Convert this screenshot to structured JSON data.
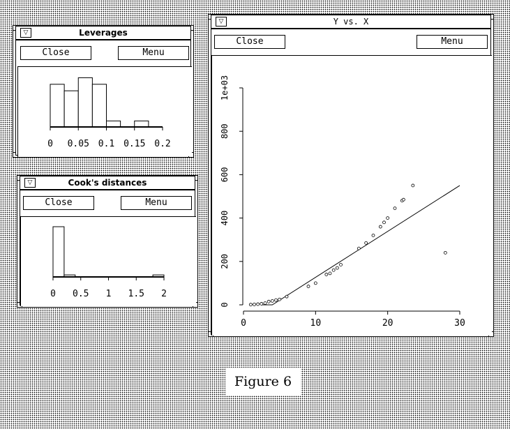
{
  "windows": {
    "leverages": {
      "title": "Leverages",
      "menu_icon": "triangle-down-icon",
      "close_label": "Close",
      "menu_label": "Menu",
      "chart_data": {
        "type": "bar",
        "kind": "histogram",
        "bin_edges": [
          0.0,
          0.025,
          0.05,
          0.075,
          0.1,
          0.125,
          0.15,
          0.175,
          0.2
        ],
        "values": [
          0.85,
          0.72,
          0.98,
          0.85,
          0.12,
          0,
          0.12,
          0
        ],
        "xlim": [
          0,
          0.2
        ],
        "x_ticks": [
          "0",
          "0.05",
          "0.1",
          "0.15",
          "0.2"
        ]
      }
    },
    "cooks": {
      "title": "Cook's distances",
      "menu_icon": "triangle-down-icon",
      "close_label": "Close",
      "menu_label": "Menu",
      "chart_data": {
        "type": "bar",
        "kind": "histogram",
        "bin_edges": [
          0.0,
          0.2,
          0.4,
          0.6,
          0.8,
          1.0,
          1.2,
          1.4,
          1.6,
          1.8,
          2.0
        ],
        "values": [
          1.0,
          0.04,
          0,
          0,
          0,
          0,
          0,
          0,
          0,
          0.04
        ],
        "xlim": [
          0,
          2
        ],
        "x_ticks": [
          "0",
          "0.5",
          "1",
          "1.5",
          "2"
        ]
      }
    },
    "scatter": {
      "title": "Y vs. X",
      "menu_icon": "triangle-down-icon",
      "close_label": "Close",
      "menu_label": "Menu",
      "chart_data": {
        "type": "scatter",
        "xlim": [
          0,
          30
        ],
        "ylim": [
          0,
          1000
        ],
        "x_ticks": [
          "0",
          "10",
          "20",
          "30"
        ],
        "y_ticks": [
          "0",
          "200",
          "400",
          "600",
          "800",
          "1e+03"
        ],
        "points": [
          [
            1.0,
            1
          ],
          [
            1.5,
            2
          ],
          [
            2.0,
            3
          ],
          [
            2.5,
            5
          ],
          [
            3.0,
            8
          ],
          [
            3.5,
            15
          ],
          [
            4.0,
            18
          ],
          [
            4.5,
            22
          ],
          [
            5.0,
            25
          ],
          [
            6.0,
            38
          ],
          [
            9.0,
            85
          ],
          [
            10.0,
            100
          ],
          [
            11.5,
            140
          ],
          [
            12.0,
            145
          ],
          [
            12.5,
            160
          ],
          [
            13.0,
            170
          ],
          [
            13.5,
            185
          ],
          [
            16.0,
            260
          ],
          [
            17.0,
            285
          ],
          [
            18.0,
            320
          ],
          [
            19.0,
            360
          ],
          [
            19.5,
            380
          ],
          [
            20.0,
            400
          ],
          [
            21.0,
            445
          ],
          [
            22.0,
            480
          ],
          [
            22.2,
            485
          ],
          [
            23.5,
            550
          ],
          [
            28.0,
            240
          ]
        ],
        "fit_line": [
          [
            2.5,
            0
          ],
          [
            4.0,
            0
          ],
          [
            30.0,
            550
          ]
        ]
      }
    }
  },
  "caption": "Figure 6"
}
